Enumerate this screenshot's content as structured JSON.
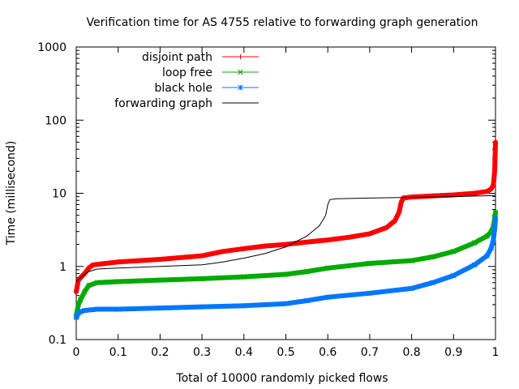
{
  "chart_data": {
    "type": "line",
    "title": "Verification time for AS 4755 relative to forwarding graph generation",
    "xlabel": "Total of 10000 randomly picked flows",
    "ylabel": "Time (millisecond)",
    "xlim": [
      0,
      1
    ],
    "ylim": [
      0.1,
      1000
    ],
    "y_scale": "log",
    "x_ticks": [
      "0",
      "0.1",
      "0.2",
      "0.3",
      "0.4",
      "0.5",
      "0.6",
      "0.7",
      "0.8",
      "0.9",
      "1"
    ],
    "y_ticks": [
      "0.1",
      "1",
      "10",
      "100",
      "1000"
    ],
    "grid": false,
    "legend_position": "top-left",
    "series": [
      {
        "name": "disjoint path",
        "color": "#ff0000",
        "marker": "plus",
        "x": [
          0,
          0.005,
          0.01,
          0.02,
          0.03,
          0.04,
          0.1,
          0.2,
          0.3,
          0.35,
          0.4,
          0.45,
          0.5,
          0.55,
          0.6,
          0.65,
          0.7,
          0.74,
          0.76,
          0.77,
          0.775,
          0.78,
          0.8,
          0.85,
          0.9,
          0.95,
          0.98,
          0.99,
          0.995,
          0.998,
          1.0
        ],
        "y": [
          0.45,
          0.65,
          0.7,
          0.8,
          0.95,
          1.05,
          1.15,
          1.25,
          1.4,
          1.6,
          1.75,
          1.9,
          2.0,
          2.15,
          2.3,
          2.5,
          2.8,
          3.4,
          4.2,
          5.5,
          7.5,
          8.6,
          8.9,
          9.2,
          9.5,
          10.0,
          10.6,
          11.5,
          13.0,
          20.0,
          50.0
        ]
      },
      {
        "name": "loop free",
        "color": "#00aa00",
        "marker": "cross",
        "x": [
          0,
          0.005,
          0.01,
          0.02,
          0.03,
          0.05,
          0.1,
          0.2,
          0.3,
          0.4,
          0.5,
          0.55,
          0.6,
          0.7,
          0.8,
          0.85,
          0.9,
          0.95,
          0.98,
          0.99,
          0.995,
          0.998,
          1.0
        ],
        "y": [
          0.21,
          0.3,
          0.35,
          0.45,
          0.55,
          0.6,
          0.62,
          0.65,
          0.68,
          0.72,
          0.78,
          0.85,
          0.95,
          1.1,
          1.2,
          1.35,
          1.6,
          2.1,
          2.6,
          3.0,
          3.5,
          4.5,
          5.5
        ]
      },
      {
        "name": "black hole",
        "color": "#0077ff",
        "marker": "star",
        "x": [
          0,
          0.005,
          0.01,
          0.02,
          0.05,
          0.1,
          0.2,
          0.3,
          0.4,
          0.5,
          0.55,
          0.6,
          0.7,
          0.8,
          0.85,
          0.9,
          0.95,
          0.98,
          0.99,
          0.995,
          0.998,
          1.0
        ],
        "y": [
          0.2,
          0.23,
          0.24,
          0.25,
          0.26,
          0.26,
          0.27,
          0.28,
          0.29,
          0.31,
          0.34,
          0.38,
          0.43,
          0.5,
          0.6,
          0.75,
          1.05,
          1.4,
          1.8,
          2.3,
          3.3,
          4.5
        ]
      },
      {
        "name": "forwarding graph",
        "color": "#000000",
        "marker": "none",
        "x": [
          0,
          0.01,
          0.02,
          0.03,
          0.05,
          0.1,
          0.2,
          0.3,
          0.35,
          0.4,
          0.45,
          0.5,
          0.55,
          0.58,
          0.595,
          0.6,
          0.605,
          0.62,
          0.7,
          0.8,
          0.9,
          1.0
        ],
        "y": [
          0.62,
          0.7,
          0.78,
          0.85,
          0.92,
          0.95,
          1.0,
          1.05,
          1.15,
          1.3,
          1.5,
          1.85,
          2.6,
          3.6,
          5.0,
          7.0,
          8.2,
          8.4,
          8.6,
          8.8,
          9.0,
          9.3
        ]
      }
    ]
  }
}
